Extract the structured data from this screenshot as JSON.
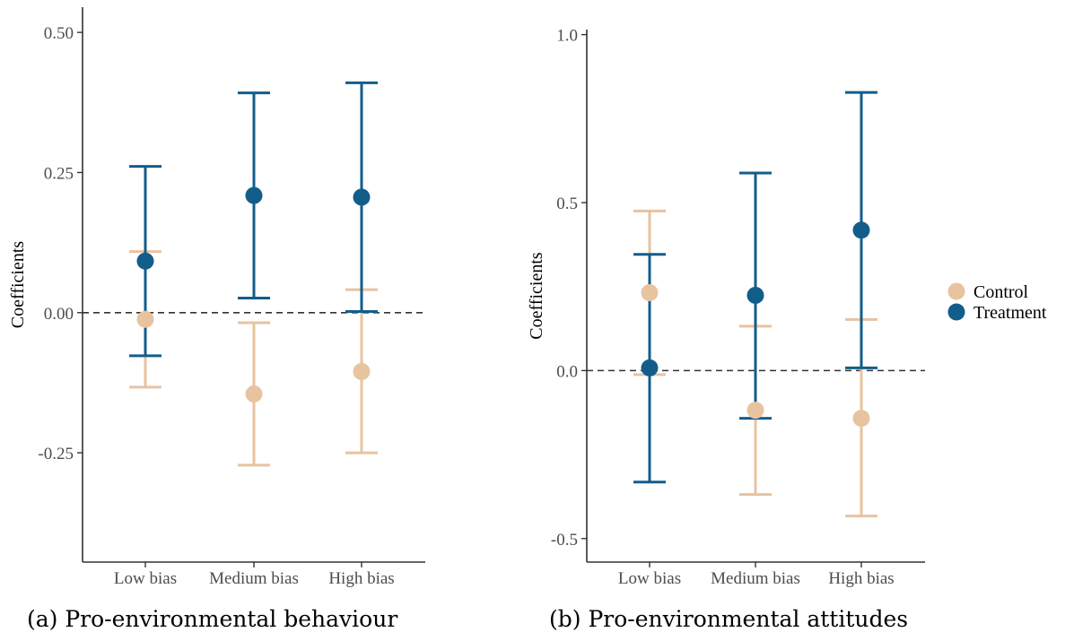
{
  "colors": {
    "control": "#e8c3a0",
    "treatment": "#135d8b",
    "axis": "#333333",
    "reference": "#333333"
  },
  "legend": {
    "position": "right",
    "items": [
      {
        "label": "Control",
        "key": "control"
      },
      {
        "label": "Treatment",
        "key": "treatment"
      }
    ]
  },
  "chart_data": [
    {
      "type": "scatter",
      "subtype": "point-errorbar",
      "caption": "(a) Pro-environmental behaviour",
      "ylabel": "Coefficients",
      "xlabel": "",
      "categories": [
        "Low bias",
        "Medium bias",
        "High bias"
      ],
      "ylim": [
        -0.445,
        0.545
      ],
      "yticks": [
        -0.25,
        0.0,
        0.25,
        0.5
      ],
      "ytick_labels": [
        "-0.25",
        "0.00",
        "0.25",
        "0.50"
      ],
      "reference_line": 0,
      "grid": false,
      "series": [
        {
          "name": "Control",
          "key": "control",
          "values": [
            -0.012,
            -0.145,
            -0.105
          ],
          "lower": [
            -0.133,
            -0.272,
            -0.25
          ],
          "upper": [
            0.109,
            -0.018,
            0.041
          ]
        },
        {
          "name": "Treatment",
          "key": "treatment",
          "values": [
            0.092,
            0.209,
            0.206
          ],
          "lower": [
            -0.077,
            0.026,
            0.002
          ],
          "upper": [
            0.261,
            0.392,
            0.41
          ]
        }
      ]
    },
    {
      "type": "scatter",
      "subtype": "point-errorbar",
      "caption": "(b) Pro-environmental attitudes",
      "ylabel": "Coefficients",
      "xlabel": "",
      "categories": [
        "Low bias",
        "Medium bias",
        "High bias"
      ],
      "ylim": [
        -0.57,
        1.015
      ],
      "yticks": [
        -0.5,
        0.0,
        0.5,
        1.0
      ],
      "ytick_labels": [
        "-0.5",
        "0.0",
        "0.5",
        "1.0"
      ],
      "reference_line": 0,
      "grid": false,
      "series": [
        {
          "name": "Control",
          "key": "control",
          "values": [
            0.232,
            -0.118,
            -0.142
          ],
          "lower": [
            -0.012,
            -0.369,
            -0.433
          ],
          "upper": [
            0.475,
            0.132,
            0.152
          ]
        },
        {
          "name": "Treatment",
          "key": "treatment",
          "values": [
            0.008,
            0.224,
            0.418
          ],
          "lower": [
            -0.332,
            -0.142,
            0.008
          ],
          "upper": [
            0.346,
            0.588,
            0.828
          ]
        }
      ]
    }
  ]
}
